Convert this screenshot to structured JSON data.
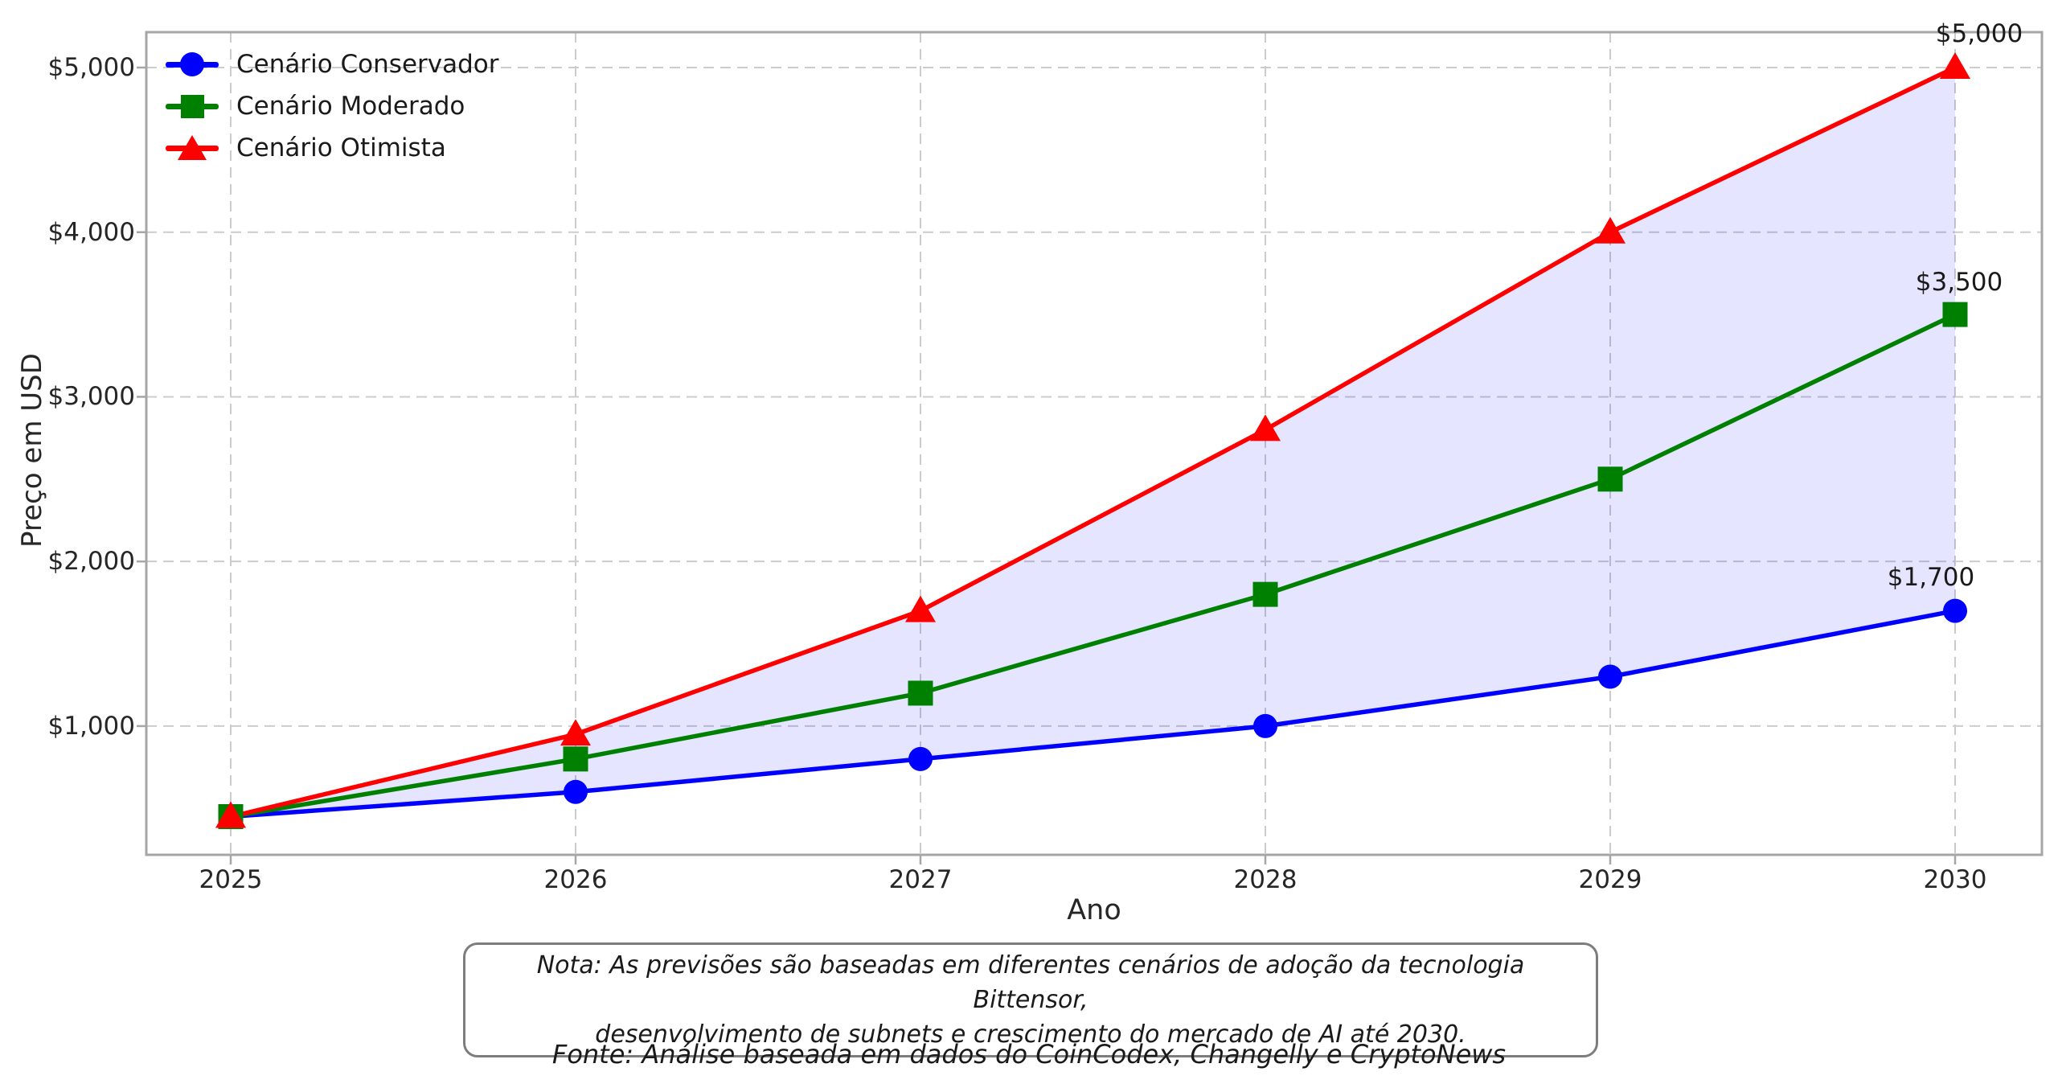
{
  "chart_data": {
    "type": "line",
    "xlabel": "Ano",
    "ylabel": "Preço em USD",
    "x": [
      2025,
      2026,
      2027,
      2028,
      2029,
      2030
    ],
    "xtick_labels": [
      "2025",
      "2026",
      "2027",
      "2028",
      "2029",
      "2030"
    ],
    "yticks": [
      1000,
      2000,
      3000,
      4000,
      5000
    ],
    "ytick_labels": [
      "$1,000",
      "$2,000",
      "$3,000",
      "$4,000",
      "$5,000"
    ],
    "ylim": [
      218,
      5215
    ],
    "grid": true,
    "legend_position": "upper-left",
    "series": [
      {
        "name": "Cenário Conservador",
        "color": "#0000ff",
        "marker": "circle",
        "values": [
          450,
          600,
          800,
          1000,
          1300,
          1700
        ]
      },
      {
        "name": "Cenário Moderado",
        "color": "#008000",
        "marker": "square",
        "values": [
          450,
          800,
          1200,
          1800,
          2500,
          3500
        ]
      },
      {
        "name": "Cenário Otimista",
        "color": "#ff0000",
        "marker": "triangle",
        "values": [
          450,
          950,
          1700,
          2800,
          4000,
          5000
        ]
      }
    ],
    "fill_between": {
      "upper": "Cenário Otimista",
      "lower": "Cenário Conservador",
      "color": "rgba(0,0,255,0.10)"
    },
    "annotations": [
      {
        "text": "$5,000",
        "series_index": 2,
        "xi": 5
      },
      {
        "text": "$3,500",
        "series_index": 1,
        "xi": 5
      },
      {
        "text": "$1,700",
        "series_index": 0,
        "xi": 5
      }
    ],
    "note_line1": "Nota: As previsões são baseadas em diferentes cenários de adoção da tecnologia Bittensor,",
    "note_line2": "desenvolvimento de subnets e crescimento do mercado de AI até 2030.",
    "fonte": "Fonte: Análise baseada em dados do CoinCodex, Changelly e CryptoNews"
  }
}
